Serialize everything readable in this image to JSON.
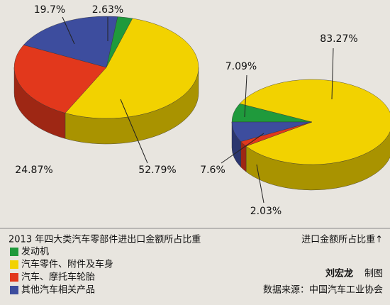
{
  "chart_data": {
    "type": "pie3d",
    "title": "2013 年四大类汽车零部件进出口金额所占比重",
    "categories": [
      "发动机",
      "汽车零件、附件及车身",
      "汽车、摩托车轮胎",
      "其他汽车相关产品"
    ],
    "colors": [
      "#1f9a3c",
      "#f2d200",
      "#e2381c",
      "#3d4d9e"
    ],
    "series": [
      {
        "values": [
          2.63,
          52.79,
          24.87,
          19.7
        ],
        "value_labels": [
          "2.63%",
          "52.79%",
          "24.87%",
          "19.7%"
        ]
      },
      {
        "name": "进口金额所占比重↑",
        "values": [
          7.09,
          83.27,
          2.03,
          7.6
        ],
        "value_labels": [
          "7.09%",
          "83.27%",
          "2.03%",
          "7.6%"
        ]
      }
    ]
  },
  "credit": {
    "author": "刘宏龙",
    "label": "制图"
  },
  "source": "数据来源：中国汽车工业协会"
}
